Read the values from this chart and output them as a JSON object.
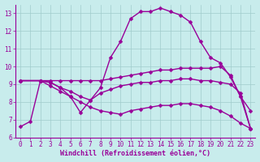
{
  "xlabel": "Windchill (Refroidissement éolien,°C)",
  "xlim": [
    -0.5,
    23.5
  ],
  "ylim": [
    6,
    13.5
  ],
  "xticks": [
    0,
    1,
    2,
    3,
    4,
    5,
    6,
    7,
    8,
    9,
    10,
    11,
    12,
    13,
    14,
    15,
    16,
    17,
    18,
    19,
    20,
    21,
    22,
    23
  ],
  "yticks": [
    6,
    7,
    8,
    9,
    10,
    11,
    12,
    13
  ],
  "bg_color": "#c8ecec",
  "line_color": "#990099",
  "grid_color": "#a0cccc",
  "line1_x": [
    0,
    1,
    2,
    3,
    4,
    5,
    6,
    7,
    8,
    9,
    10,
    11,
    12,
    13,
    14,
    15,
    16,
    17,
    18,
    19,
    20,
    21,
    22,
    23
  ],
  "line1_y": [
    6.6,
    6.9,
    9.2,
    9.1,
    8.8,
    8.3,
    7.4,
    8.1,
    8.8,
    10.5,
    11.4,
    12.7,
    13.1,
    13.1,
    13.3,
    13.1,
    12.9,
    12.5,
    11.4,
    10.5,
    10.2,
    9.4,
    8.3,
    7.5
  ],
  "line2_x": [
    0,
    2,
    3,
    4,
    5,
    6,
    7,
    8,
    9,
    10,
    11,
    12,
    13,
    14,
    15,
    16,
    17,
    18,
    19,
    20,
    21,
    22,
    23
  ],
  "line2_y": [
    9.2,
    9.2,
    9.2,
    9.2,
    9.2,
    9.2,
    9.2,
    9.2,
    9.3,
    9.4,
    9.5,
    9.6,
    9.7,
    9.8,
    9.8,
    9.9,
    9.9,
    9.9,
    9.9,
    10.0,
    9.5,
    8.3,
    6.5
  ],
  "line3_x": [
    0,
    2,
    3,
    4,
    5,
    6,
    7,
    8,
    9,
    10,
    11,
    12,
    13,
    14,
    15,
    16,
    17,
    18,
    19,
    20,
    21,
    22,
    23
  ],
  "line3_y": [
    9.2,
    9.2,
    9.1,
    8.8,
    8.6,
    8.3,
    8.1,
    8.5,
    8.7,
    8.9,
    9.0,
    9.1,
    9.1,
    9.2,
    9.2,
    9.3,
    9.3,
    9.2,
    9.2,
    9.1,
    9.0,
    8.5,
    6.5
  ],
  "line4_x": [
    0,
    2,
    3,
    4,
    5,
    6,
    7,
    8,
    9,
    10,
    11,
    12,
    13,
    14,
    15,
    16,
    17,
    18,
    19,
    20,
    21,
    22,
    23
  ],
  "line4_y": [
    9.2,
    9.2,
    8.9,
    8.6,
    8.3,
    8.0,
    7.7,
    7.5,
    7.4,
    7.3,
    7.5,
    7.6,
    7.7,
    7.8,
    7.8,
    7.9,
    7.9,
    7.8,
    7.7,
    7.5,
    7.2,
    6.8,
    6.5
  ],
  "marker": "D",
  "markersize": 2.5,
  "linewidth": 1.0,
  "tick_fontsize": 5.5,
  "label_fontsize": 6.0
}
